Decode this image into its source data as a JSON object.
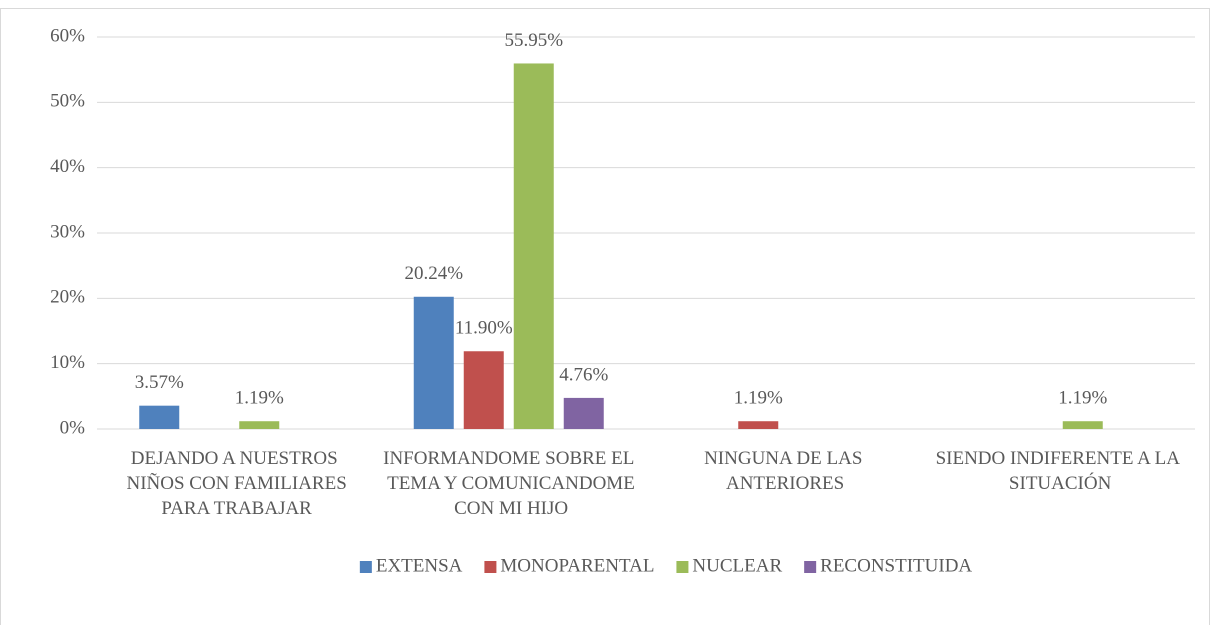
{
  "chart_data": {
    "type": "bar",
    "categories": [
      "DEJANDO A NUESTROS NIÑOS CON FAMILIARES PARA TRABAJAR",
      "INFORMANDOME SOBRE EL TEMA Y COMUNICANDOME CON MI HIJO",
      "NINGUNA DE LAS ANTERIORES",
      "SIENDO INDIFERENTE A LA SITUACIÓN"
    ],
    "series": [
      {
        "name": "EXTENSA",
        "color": "#4f81bd",
        "values": [
          3.57,
          20.24,
          null,
          null
        ],
        "value_labels": [
          "3.57%",
          "20.24%",
          null,
          null
        ]
      },
      {
        "name": "MONOPARENTAL",
        "color": "#c0504d",
        "values": [
          null,
          11.9,
          1.19,
          null
        ],
        "value_labels": [
          null,
          "11.90%",
          "1.19%",
          null
        ]
      },
      {
        "name": "NUCLEAR",
        "color": "#9bbb59",
        "values": [
          1.19,
          55.95,
          null,
          1.19
        ],
        "value_labels": [
          "1.19%",
          "55.95%",
          null,
          "1.19%"
        ]
      },
      {
        "name": "RECONSTITUIDA",
        "color": "#8064a2",
        "values": [
          null,
          4.76,
          null,
          null
        ],
        "value_labels": [
          null,
          "4.76%",
          null,
          null
        ]
      }
    ],
    "ylim": [
      0,
      60
    ],
    "yticks": [
      {
        "value": 0,
        "label": "0%"
      },
      {
        "value": 10,
        "label": "10%"
      },
      {
        "value": 20,
        "label": "20%"
      },
      {
        "value": 30,
        "label": "30%"
      },
      {
        "value": 40,
        "label": "40%"
      },
      {
        "value": 50,
        "label": "50%"
      },
      {
        "value": 60,
        "label": "60%"
      }
    ],
    "grid": true,
    "legend": "bottom"
  }
}
